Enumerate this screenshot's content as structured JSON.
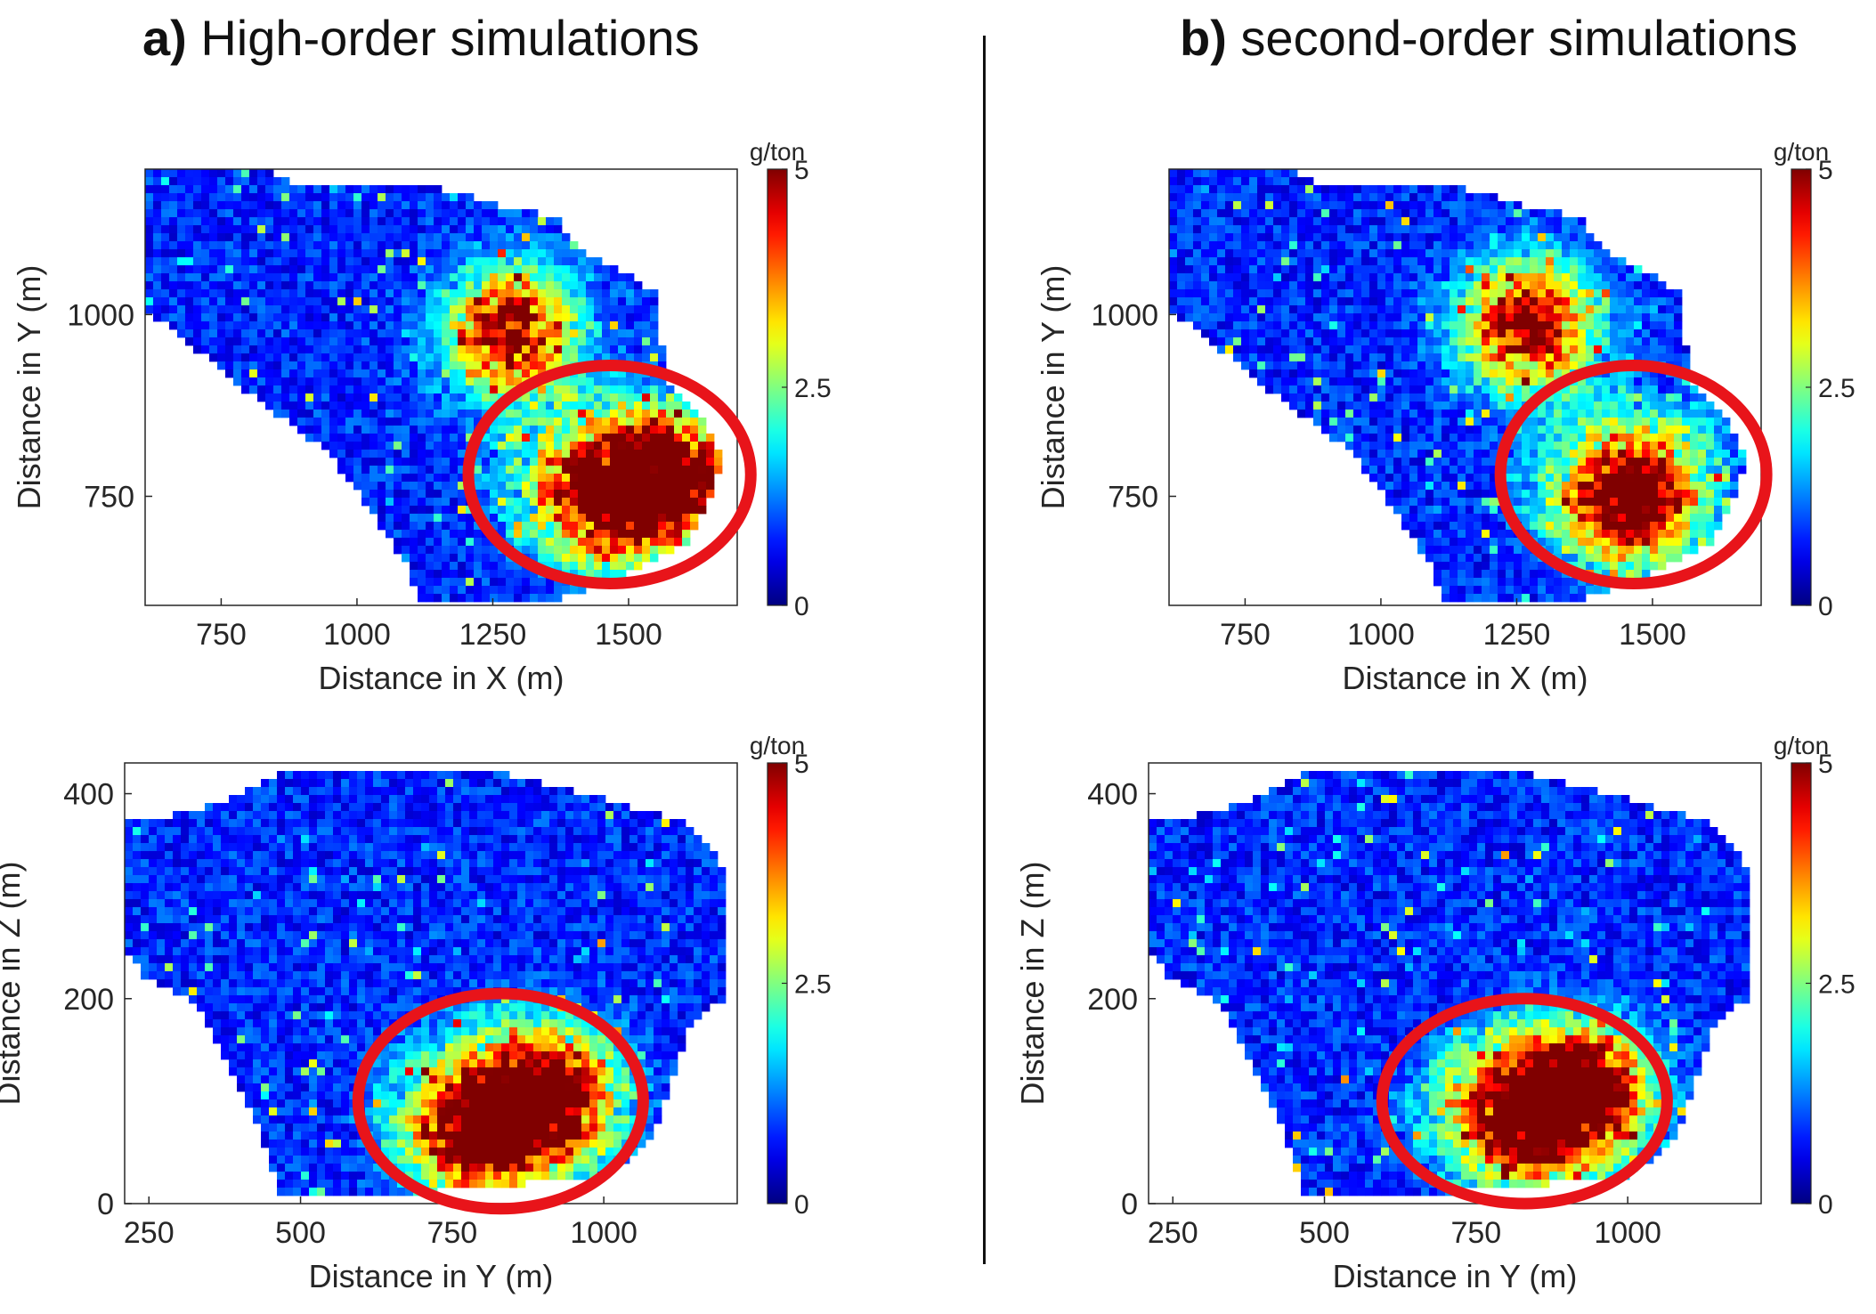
{
  "titles": {
    "a_letter": "a)",
    "a_text": "High-order simulations",
    "b_letter": "b)",
    "b_text": "second-order simulations"
  },
  "colors": {
    "colormap": "jet",
    "highlight_ellipse": "#e8141a",
    "background_nodata": "#ffffff"
  },
  "chart_data": [
    {
      "type": "heatmap",
      "panel": "a",
      "view": "plan",
      "xlabel": "Distance in X (m)",
      "ylabel": "Distance in Y (m)",
      "xlim": [
        610,
        1700
      ],
      "ylim": [
        600,
        1200
      ],
      "xticks": [
        750,
        1000,
        1250,
        1500
      ],
      "yticks": [
        750,
        1000
      ],
      "colorbar": {
        "unit": "g/ton",
        "min": 0,
        "max": 5,
        "ticks": [
          0,
          2.5,
          5
        ]
      },
      "highlight": {
        "shape": "ellipse",
        "cx": 1465,
        "cy": 780,
        "rx": 260,
        "ry": 150
      },
      "hotspots": [
        {
          "x": 1280,
          "y": 980,
          "value": 5
        },
        {
          "x": 1450,
          "y": 760,
          "value": 5
        },
        {
          "x": 1580,
          "y": 780,
          "value": 4.5
        }
      ]
    },
    {
      "type": "heatmap",
      "panel": "a",
      "view": "section",
      "xlabel": "Distance in Y (m)",
      "ylabel": "Distance in Z (m)",
      "xlim": [
        210,
        1220
      ],
      "ylim": [
        0,
        430
      ],
      "xticks": [
        250,
        500,
        750,
        1000
      ],
      "yticks": [
        0,
        200,
        400
      ],
      "colorbar": {
        "unit": "g/ton",
        "min": 0,
        "max": 5,
        "ticks": [
          0,
          2.5,
          5
        ]
      },
      "highlight": {
        "shape": "ellipse",
        "cx": 830,
        "cy": 100,
        "rx": 235,
        "ry": 105
      },
      "hotspots": [
        {
          "x": 780,
          "y": 75,
          "value": 5
        },
        {
          "x": 900,
          "y": 110,
          "value": 5
        }
      ]
    },
    {
      "type": "heatmap",
      "panel": "b",
      "view": "plan",
      "xlabel": "Distance in X (m)",
      "ylabel": "Distance in Y (m)",
      "xlim": [
        610,
        1700
      ],
      "ylim": [
        600,
        1200
      ],
      "xticks": [
        750,
        1000,
        1250,
        1500
      ],
      "yticks": [
        750,
        1000
      ],
      "colorbar": {
        "unit": "g/ton",
        "min": 0,
        "max": 5,
        "ticks": [
          0,
          2.5,
          5
        ]
      },
      "highlight": {
        "shape": "ellipse",
        "cx": 1465,
        "cy": 780,
        "rx": 245,
        "ry": 150
      },
      "hotspots": [
        {
          "x": 1265,
          "y": 990,
          "value": 5
        },
        {
          "x": 1450,
          "y": 755,
          "value": 5
        }
      ]
    },
    {
      "type": "heatmap",
      "panel": "b",
      "view": "section",
      "xlabel": "Distance in Y (m)",
      "ylabel": "Distance in Z (m)",
      "xlim": [
        210,
        1220
      ],
      "ylim": [
        0,
        430
      ],
      "xticks": [
        250,
        500,
        750,
        1000
      ],
      "yticks": [
        0,
        200,
        400
      ],
      "colorbar": {
        "unit": "g/ton",
        "min": 0,
        "max": 5,
        "ticks": [
          0,
          2.5,
          5
        ]
      },
      "highlight": {
        "shape": "ellipse",
        "cx": 830,
        "cy": 100,
        "rx": 235,
        "ry": 100
      },
      "hotspots": [
        {
          "x": 820,
          "y": 90,
          "value": 5
        },
        {
          "x": 920,
          "y": 115,
          "value": 5
        }
      ]
    }
  ]
}
